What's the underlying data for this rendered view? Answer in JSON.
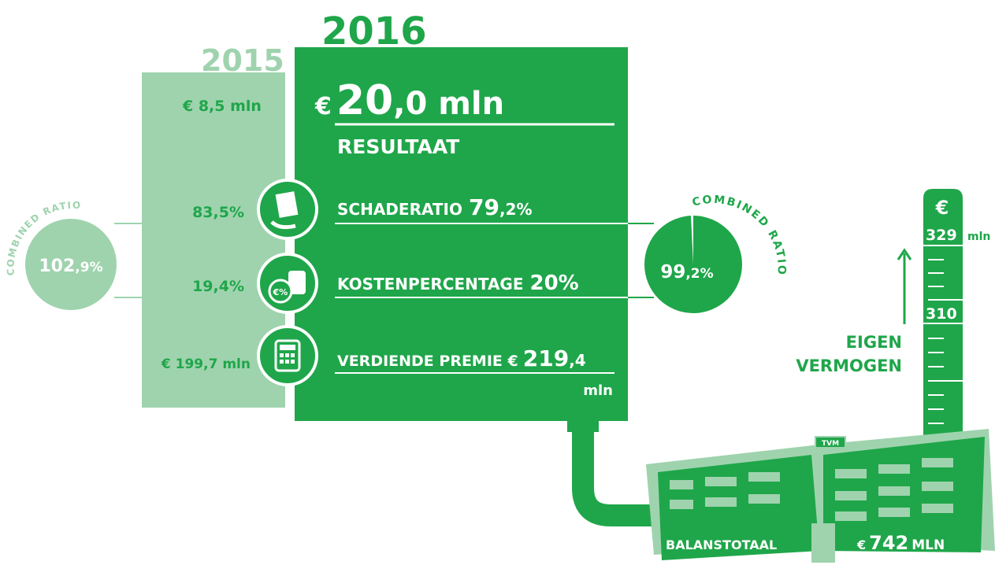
{
  "years": {
    "previous": "2015",
    "current": "2016"
  },
  "result": {
    "previous": "€ 8,5 mln",
    "currency": "€",
    "whole": "20",
    "rest": ",0 mln",
    "label": "RESULTAAT"
  },
  "combined_ratio": {
    "label": "COMBINED RATIO",
    "previous_whole": "102",
    "previous_rest": ",9%",
    "current_whole": "99",
    "current_rest": ",2%"
  },
  "claims_ratio": {
    "label": "SCHADERATIO",
    "previous": "83,5%",
    "current_whole": "79",
    "current_rest": ",2%"
  },
  "cost_ratio": {
    "label": "KOSTENPERCENTAGE",
    "previous": "19,4%",
    "current": "20%",
    "icon": "€%"
  },
  "earned_premium": {
    "label": "VERDIENDE PREMIE €",
    "previous": "€ 199,7 mln",
    "current_whole": "219",
    "current_rest": ",4",
    "unit": "mln"
  },
  "equity": {
    "currency": "€",
    "top": "329",
    "unit": "mln",
    "mid": "310",
    "label_line1": "EIGEN",
    "label_line2": "VERMOGEN"
  },
  "balance": {
    "label": "BALANSTOTAAL",
    "currency": "€",
    "value": "742",
    "unit": "MLN",
    "sign": "TVM"
  }
}
